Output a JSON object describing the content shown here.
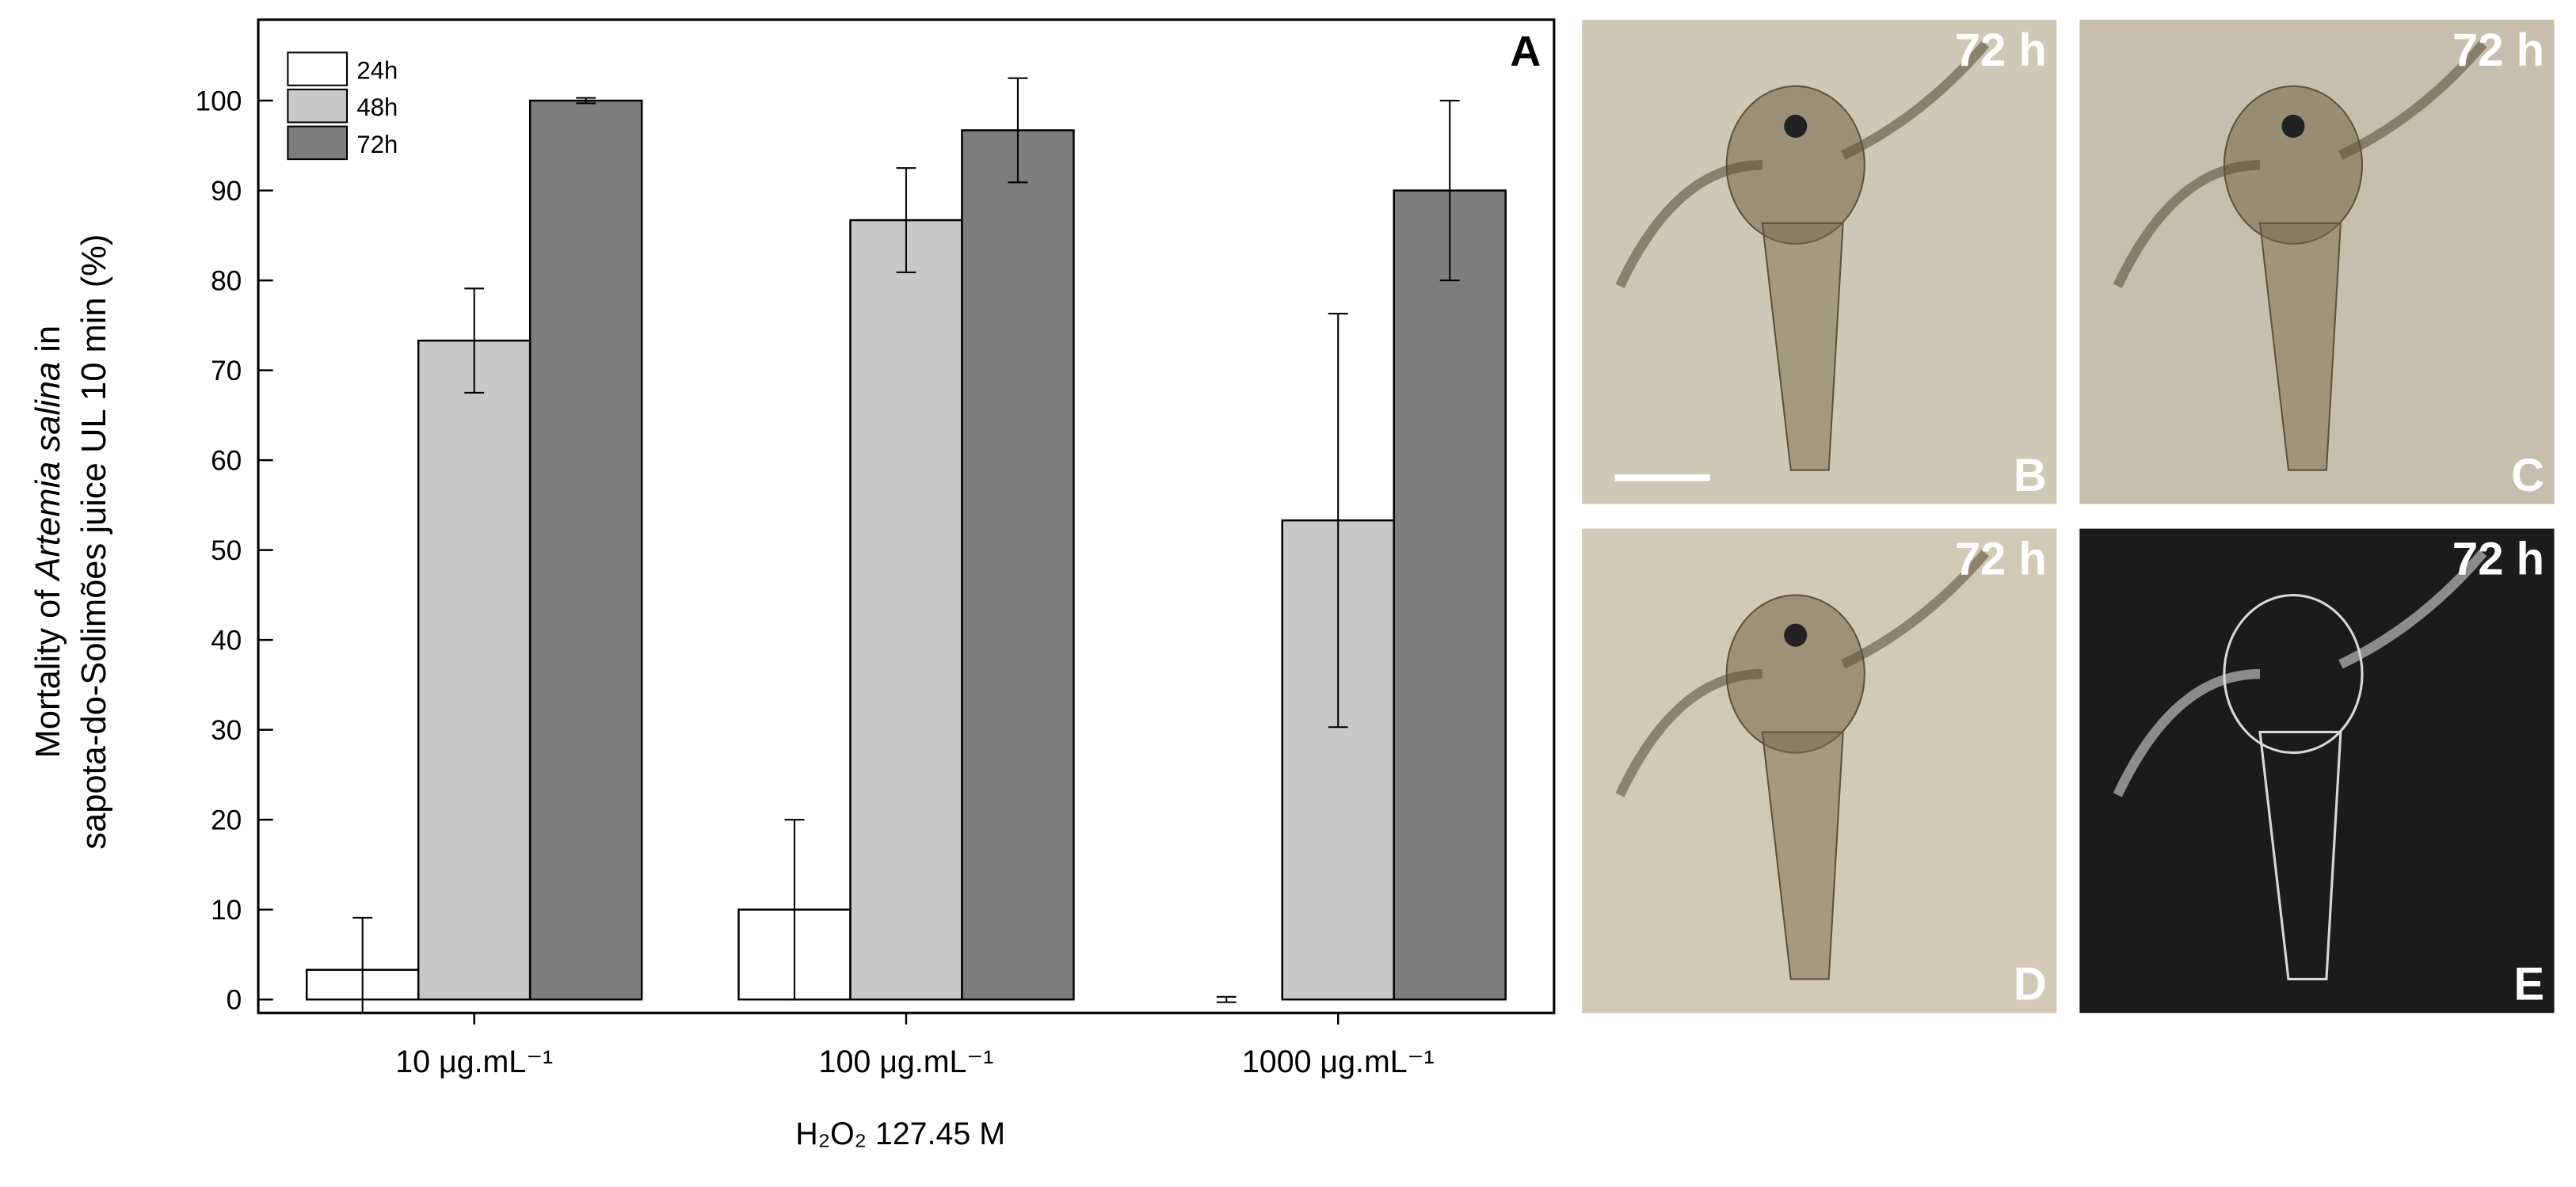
{
  "chart_data": {
    "type": "bar",
    "categories": [
      "10 μg.mL⁻¹",
      "100 μg.mL⁻¹",
      "1000 μg.mL⁻¹"
    ],
    "series": [
      {
        "name": "24h",
        "color": "#ffffff",
        "values": [
          3.3,
          10,
          0
        ],
        "errors": [
          5.8,
          10,
          0.3
        ]
      },
      {
        "name": "48h",
        "color": "#c8c8c8",
        "values": [
          73.3,
          86.7,
          53.3
        ],
        "errors": [
          5.8,
          5.8,
          23
        ]
      },
      {
        "name": "72h",
        "color": "#7d7d7d",
        "values": [
          100,
          96.7,
          90
        ],
        "errors": [
          0.3,
          5.8,
          10
        ]
      }
    ],
    "ylim": [
      -1.5,
      109
    ],
    "yticks": [
      0,
      10,
      20,
      30,
      40,
      50,
      60,
      70,
      80,
      90,
      100
    ],
    "y_label": [
      [
        "Mortality of ",
        "Artemia salina",
        " in"
      ],
      [
        "sapota-do-Solimões juice UL 10 min (%)"
      ]
    ],
    "x_label": "H₂O₂ 127.45 M",
    "panel_label": "A",
    "legend": "upper left"
  },
  "panels": [
    {
      "label": "B",
      "time": "72 h"
    },
    {
      "label": "C",
      "time": "72 h"
    },
    {
      "label": "D",
      "time": "72 h"
    },
    {
      "label": "E",
      "time": "72 h"
    }
  ]
}
